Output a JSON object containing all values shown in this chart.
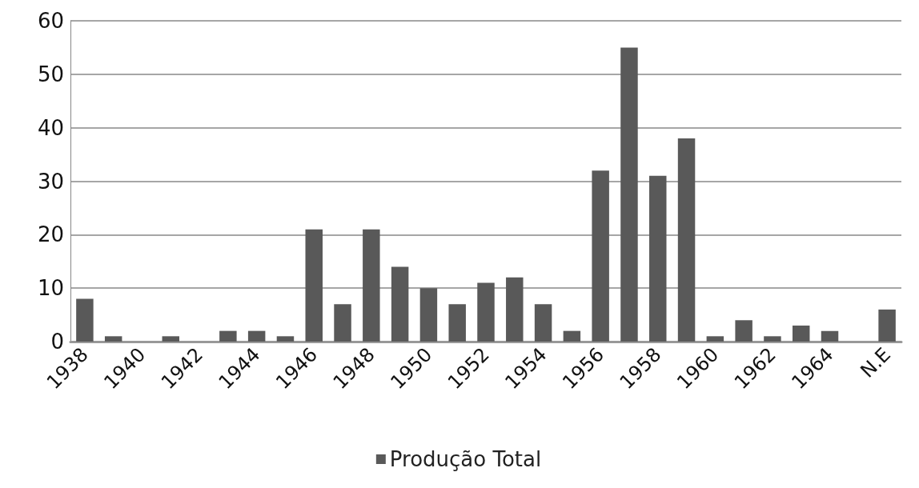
{
  "chart_data": {
    "type": "bar",
    "categories": [
      "1938",
      null,
      "1940",
      null,
      "1942",
      null,
      "1944",
      null,
      "1946",
      null,
      "1948",
      null,
      "1950",
      null,
      "1952",
      null,
      "1954",
      null,
      "1956",
      null,
      "1958",
      null,
      "1960",
      null,
      "1962",
      null,
      "1964",
      null,
      "N.E"
    ],
    "series": [
      {
        "name": "Produção Total",
        "color": "#595959",
        "values": [
          8,
          1,
          0,
          1,
          0,
          2,
          2,
          1,
          21,
          7,
          21,
          14,
          10,
          7,
          11,
          12,
          7,
          2,
          32,
          55,
          31,
          38,
          1,
          4,
          1,
          3,
          2,
          0,
          6
        ]
      }
    ],
    "ylim": [
      0,
      60
    ],
    "yticks": [
      0,
      10,
      20,
      30,
      40,
      50,
      60
    ],
    "grid": "y",
    "legend": "bottom"
  }
}
